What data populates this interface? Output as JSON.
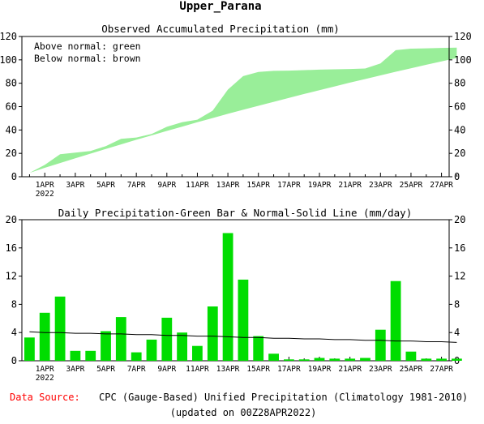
{
  "page": {
    "title": "Upper_Parana",
    "source_label": "Data Source:",
    "source_text": "CPC (Gauge-Based) Unified Precipitation (Climatology 1981-2010)",
    "updated_text": "(updated on 00Z28APR2022)"
  },
  "colors": {
    "green": "#00dd00",
    "band": "#99ee99",
    "source_label": "#ff0000"
  },
  "chart_data": [
    {
      "type": "area",
      "title": "Observed Accumulated Precipitation (mm)",
      "legend_lines": [
        "Above normal: green",
        "Below normal: brown"
      ],
      "ylim": [
        0,
        120
      ],
      "yticks": [
        0,
        20,
        40,
        60,
        80,
        100,
        120
      ],
      "xlim": [
        -0.5,
        27.5
      ],
      "xtick_labels": [
        "1APR",
        "3APR",
        "5APR",
        "7APR",
        "9APR",
        "11APR",
        "13APR",
        "15APR",
        "17APR",
        "19APR",
        "21APR",
        "23APR",
        "25APR",
        "27APR"
      ],
      "xtick_year": "2022",
      "series": [
        {
          "values": [
            3.3,
            10.1,
            19.2,
            20.6,
            22.0,
            26.2,
            32.4,
            33.6,
            36.6,
            42.7,
            46.7,
            48.8,
            56.5,
            74.6,
            86.1,
            89.6,
            90.6,
            90.8,
            91.2,
            91.6,
            91.9,
            92.2,
            92.6,
            97.0,
            108.3,
            109.6,
            109.9,
            110.2,
            110.5
          ]
        },
        {
          "values": [
            3.3,
            7.6,
            11.7,
            15.8,
            19.8,
            23.8,
            27.7,
            31.6,
            35.4,
            39.2,
            42.9,
            46.6,
            50.2,
            53.8,
            57.3,
            60.7,
            64.1,
            67.5,
            70.8,
            74.1,
            77.3,
            80.5,
            83.6,
            86.7,
            89.8,
            92.8,
            95.8,
            98.7,
            101.6
          ]
        }
      ]
    },
    {
      "type": "bar",
      "title": "Daily Precipitation-Green Bar & Normal-Solid Line (mm/day)",
      "ylim": [
        0,
        20
      ],
      "yticks": [
        0,
        4,
        8,
        12,
        16,
        20
      ],
      "xlim": [
        -0.5,
        27.5
      ],
      "xtick_labels": [
        "1APR",
        "3APR",
        "5APR",
        "7APR",
        "9APR",
        "11APR",
        "13APR",
        "15APR",
        "17APR",
        "19APR",
        "21APR",
        "23APR",
        "25APR",
        "27APR"
      ],
      "xtick_year": "2022",
      "series": [
        {
          "values": [
            3.3,
            6.8,
            9.1,
            1.4,
            1.4,
            4.2,
            6.2,
            1.2,
            3.0,
            6.1,
            4.0,
            2.1,
            7.7,
            18.1,
            11.5,
            3.5,
            1.0,
            0.2,
            0.2,
            0.4,
            0.3,
            0.3,
            0.4,
            4.4,
            11.3,
            1.3,
            0.3,
            0.3,
            0.3
          ]
        },
        {
          "values": [
            4.1,
            4.0,
            4.0,
            3.9,
            3.9,
            3.8,
            3.8,
            3.7,
            3.7,
            3.6,
            3.6,
            3.5,
            3.5,
            3.4,
            3.3,
            3.3,
            3.2,
            3.2,
            3.1,
            3.1,
            3.0,
            3.0,
            2.9,
            2.9,
            2.8,
            2.8,
            2.7,
            2.7,
            2.6
          ]
        }
      ]
    }
  ]
}
